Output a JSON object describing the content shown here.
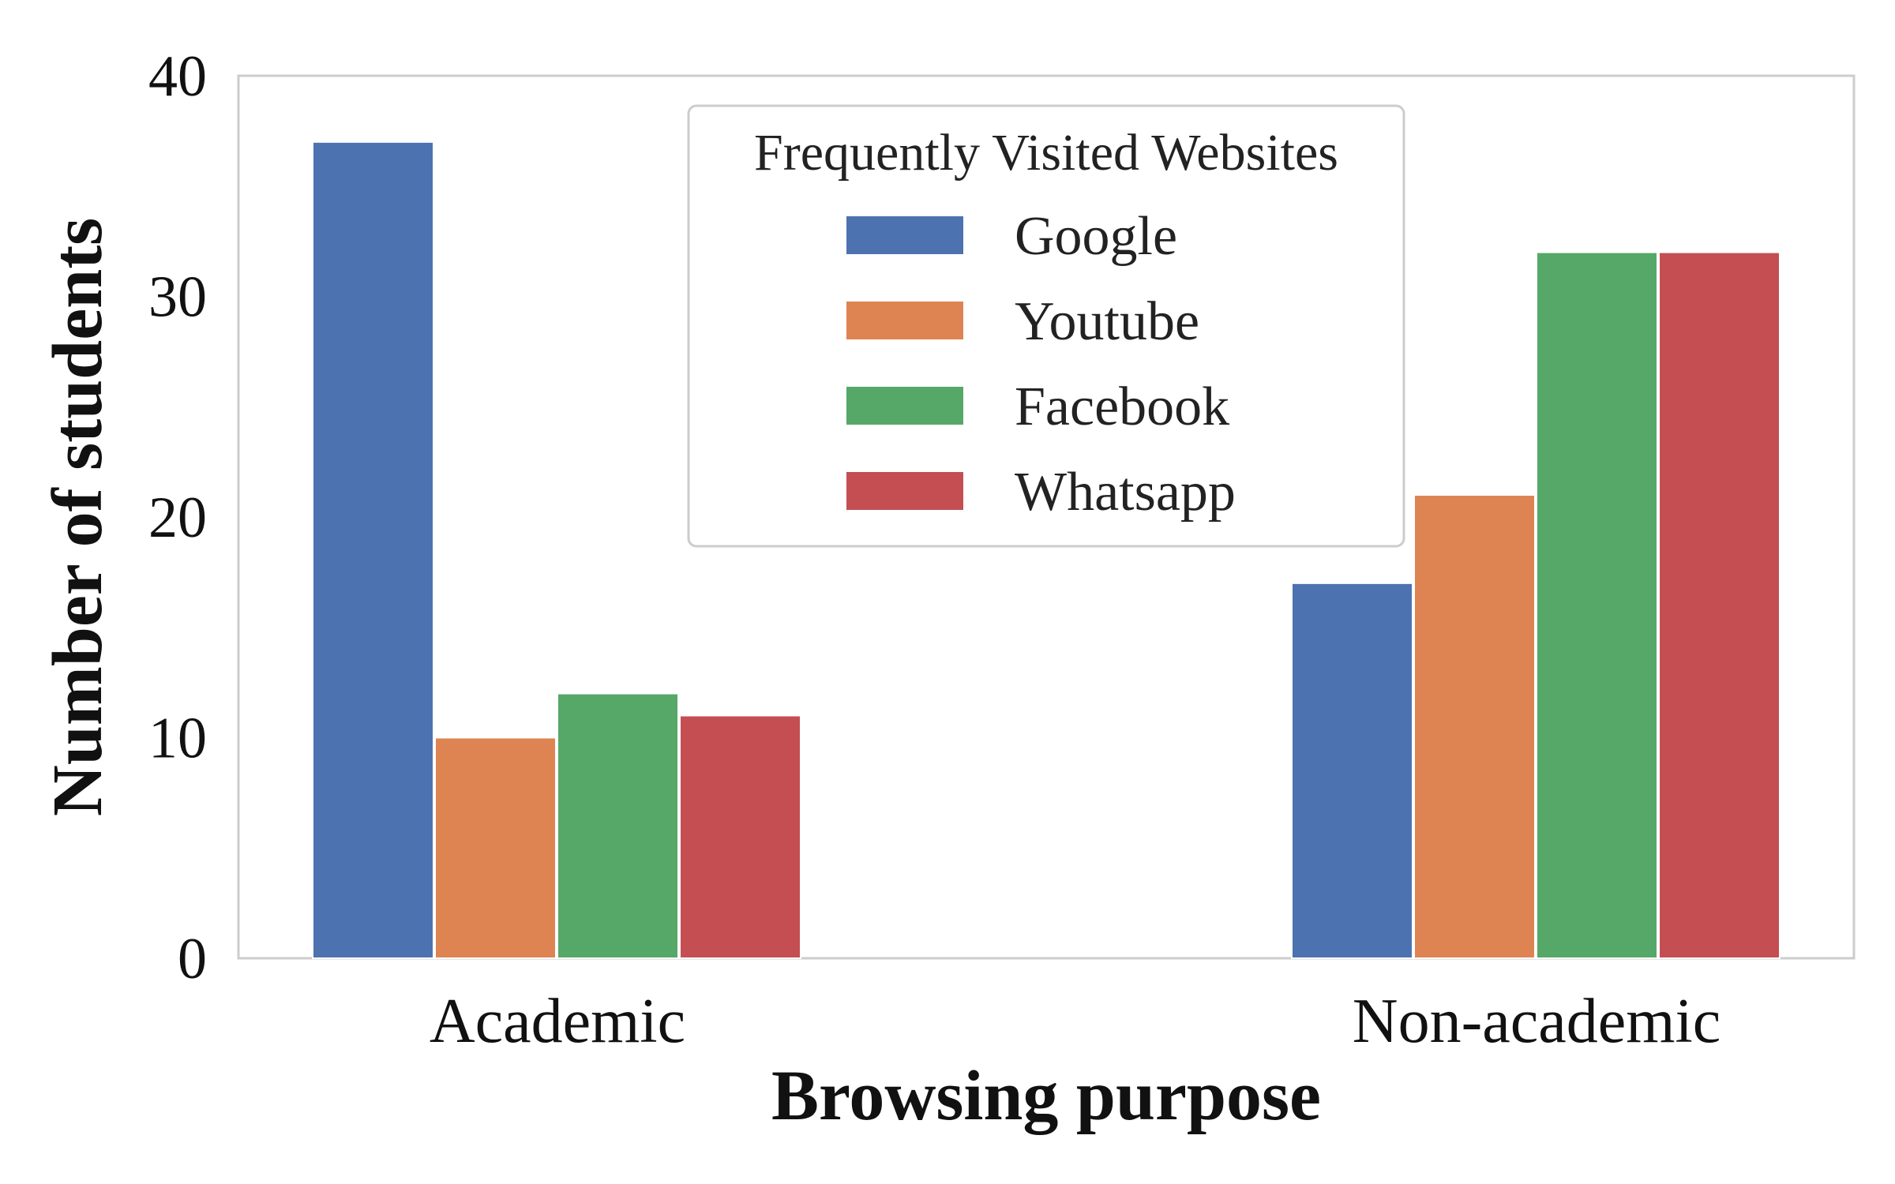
{
  "chart_data": {
    "type": "bar",
    "title": "",
    "xlabel": "Browsing purpose",
    "ylabel": "Number of students",
    "categories": [
      "Academic",
      "Non-academic"
    ],
    "series": [
      {
        "name": "Google",
        "color": "#4c72b0",
        "values": [
          37,
          17
        ]
      },
      {
        "name": "Youtube",
        "color": "#dd8452",
        "values": [
          10,
          21
        ]
      },
      {
        "name": "Facebook",
        "color": "#55a868",
        "values": [
          12,
          32
        ]
      },
      {
        "name": "Whatsapp",
        "color": "#c44e52",
        "values": [
          11,
          32
        ]
      }
    ],
    "ylim": [
      0,
      40
    ],
    "yticks": [
      0,
      10,
      20,
      30,
      40
    ],
    "grid": false,
    "legend": {
      "title": "Frequently Visited Websites",
      "placement": "top-center"
    }
  }
}
